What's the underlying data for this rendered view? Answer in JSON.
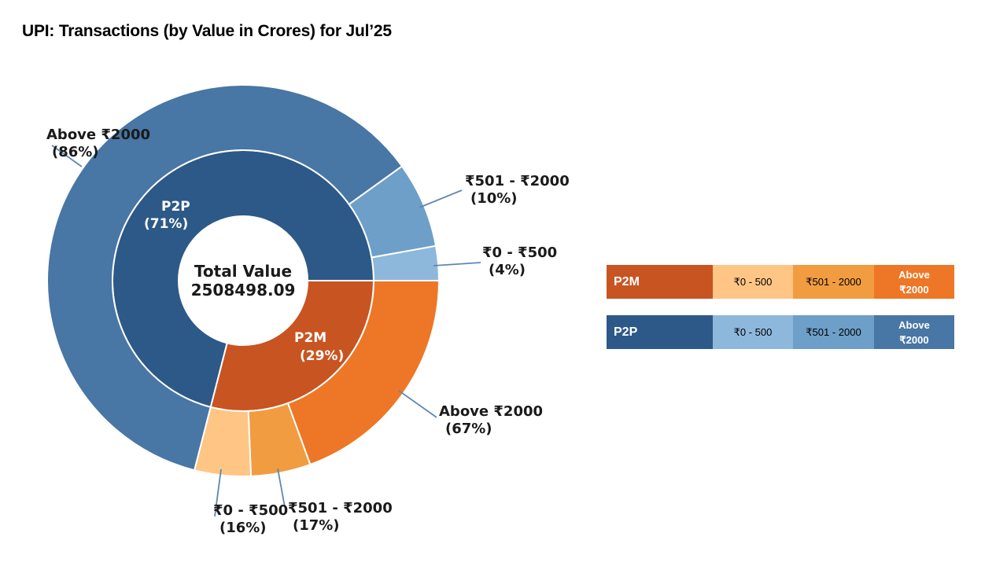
{
  "title": "UPI: Transactions (by Value in Crores) for Jul’25",
  "chart_data": {
    "type": "pie",
    "subtype": "nested-donut",
    "center_label": {
      "line1": "Total Value",
      "line2": "2508498.09"
    },
    "inner": [
      {
        "name": "P2M",
        "percent": 29,
        "label": "P2M",
        "pct_label": "(29%)",
        "color": "#C85422"
      },
      {
        "name": "P2P",
        "percent": 71,
        "label": "P2P",
        "pct_label": "(71%)",
        "color": "#2C5987"
      }
    ],
    "outer": [
      {
        "group": "P2M",
        "name": "Above ₹2000",
        "percent": 67,
        "label": "Above ₹2000",
        "pct_label": "(67%)",
        "color": "#ED7726"
      },
      {
        "group": "P2M",
        "name": "₹501 - ₹2000",
        "percent": 17,
        "label": "₹501 - ₹2000",
        "pct_label": "(17%)",
        "color": "#F19C40"
      },
      {
        "group": "P2M",
        "name": "₹0 - ₹500",
        "percent": 16,
        "label": "₹0 - ₹500",
        "pct_label": "(16%)",
        "color": "#FFC585"
      },
      {
        "group": "P2P",
        "name": "Above ₹2000",
        "percent": 86,
        "label": "Above ₹2000",
        "pct_label": "(86%)",
        "color": "#4876A5"
      },
      {
        "group": "P2P",
        "name": "₹501 - ₹2000",
        "percent": 10,
        "label": "₹501 - ₹2000",
        "pct_label": "(10%)",
        "color": "#6D9FC8"
      },
      {
        "group": "P2P",
        "name": "₹0 - ₹500",
        "percent": 4,
        "label": "₹0 - ₹500",
        "pct_label": "(4%)",
        "color": "#8DB8DC"
      }
    ]
  },
  "legend": {
    "p2m": {
      "label": "P2M",
      "c1": "₹0 - 500",
      "c2": "₹501 - 2000",
      "c3_line1": "Above",
      "c3_line2": "₹2000",
      "colors": [
        "#C85422",
        "#FFC585",
        "#F19C40",
        "#ED7726"
      ]
    },
    "p2p": {
      "label": "P2P",
      "c1": "₹0 - 500",
      "c2": "₹501 - 2000",
      "c3_line1": "Above",
      "c3_line2": "₹2000",
      "colors": [
        "#2C5987",
        "#8DB8DC",
        "#6D9FC8",
        "#4876A5"
      ]
    }
  }
}
